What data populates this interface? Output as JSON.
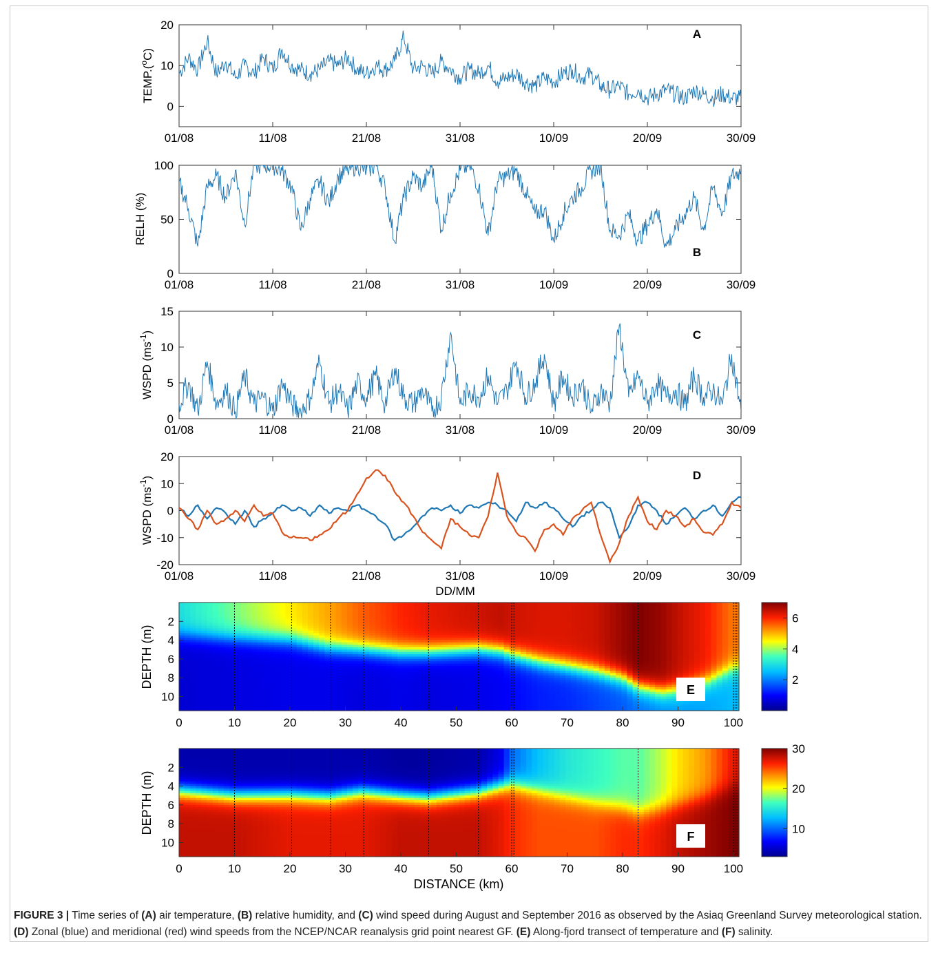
{
  "caption": {
    "label": "FIGURE 3 |",
    "s1": "Time series of",
    "a": "(A)",
    "s2": "air temperature,",
    "b": "(B)",
    "s3": "relative humidity, and",
    "c": "(C)",
    "s4": "wind speed during August and September 2016 as observed by the Asiaq Greenland Survey meteorological station.",
    "d": "(D)",
    "s5": "Zonal (blue) and meridional (red) wind speeds from the NCEP/NCAR reanalysis grid point nearest GF.",
    "e": "(E)",
    "s6": "Along-fjord transect of temperature and",
    "f": "(F)",
    "s7": "salinity."
  },
  "colors": {
    "series_blue": "#1f77b4",
    "series_red": "#d9531e",
    "axis": "#333333"
  },
  "chart_data": [
    {
      "panel": "A",
      "type": "line",
      "ylabel": "TEMP.(oC)",
      "ylabel_main": "TEMP.(",
      "ylabel_sup": "o",
      "ylabel_end": "C)",
      "xticks": [
        "01/08",
        "11/08",
        "21/08",
        "31/08",
        "10/09",
        "20/09",
        "30/09"
      ],
      "yticks": [
        "0",
        "10",
        "20"
      ],
      "ylim": [
        -5,
        20
      ],
      "xlim": [
        1,
        61
      ],
      "series": [
        {
          "color": "#1f77b4",
          "x": [
            1,
            2,
            3,
            4,
            5,
            6,
            7,
            8,
            9,
            10,
            11,
            12,
            13,
            14,
            15,
            16,
            17,
            18,
            19,
            20,
            21,
            22,
            23,
            24,
            25,
            26,
            27,
            28,
            29,
            30,
            31,
            32,
            33,
            34,
            35,
            36,
            37,
            38,
            39,
            40,
            41,
            42,
            43,
            44,
            45,
            46,
            47,
            48,
            49,
            50,
            51,
            52,
            53,
            54,
            55,
            56,
            57,
            58,
            59,
            60,
            61
          ],
          "y": [
            8,
            12,
            9,
            16,
            8,
            11,
            7,
            10,
            8,
            12,
            9,
            14,
            10,
            9,
            8,
            9,
            11,
            10,
            12,
            9,
            8,
            10,
            9,
            11,
            17,
            9,
            10,
            8,
            11,
            9,
            7,
            9,
            8,
            10,
            6,
            7,
            8,
            6,
            5,
            7,
            6,
            8,
            9,
            7,
            8,
            5,
            4,
            5,
            3,
            4,
            2,
            3,
            4,
            3,
            2,
            4,
            3,
            2,
            3,
            2,
            2
          ]
        }
      ]
    },
    {
      "panel": "B",
      "type": "line",
      "ylabel": "RELH (%)",
      "xticks": [
        "01/08",
        "11/08",
        "21/08",
        "31/08",
        "10/09",
        "20/09",
        "30/09"
      ],
      "yticks": [
        "0",
        "50",
        "100"
      ],
      "ylim": [
        0,
        100
      ],
      "xlim": [
        1,
        61
      ],
      "series": [
        {
          "color": "#1f77b4",
          "x": [
            1,
            2,
            3,
            4,
            5,
            6,
            7,
            8,
            9,
            10,
            11,
            12,
            13,
            14,
            15,
            16,
            17,
            18,
            19,
            20,
            21,
            22,
            23,
            24,
            25,
            26,
            27,
            28,
            29,
            30,
            31,
            32,
            33,
            34,
            35,
            36,
            37,
            38,
            39,
            40,
            41,
            42,
            43,
            44,
            45,
            46,
            47,
            48,
            49,
            50,
            51,
            52,
            53,
            54,
            55,
            56,
            57,
            58,
            59,
            60,
            61
          ],
          "y": [
            85,
            60,
            25,
            80,
            90,
            70,
            95,
            45,
            100,
            100,
            100,
            95,
            80,
            40,
            70,
            85,
            65,
            90,
            95,
            100,
            95,
            100,
            80,
            30,
            70,
            90,
            80,
            100,
            40,
            75,
            95,
            100,
            80,
            35,
            85,
            90,
            95,
            75,
            55,
            60,
            30,
            55,
            70,
            80,
            95,
            100,
            40,
            35,
            55,
            30,
            45,
            60,
            25,
            40,
            55,
            70,
            40,
            80,
            55,
            90,
            95
          ]
        }
      ]
    },
    {
      "panel": "C",
      "type": "line",
      "ylabel": "WSPD (ms-1)",
      "ylabel_main": "WSPD (ms",
      "ylabel_sup": "-1",
      "ylabel_end": ")",
      "xticks": [
        "01/08",
        "11/08",
        "21/08",
        "31/08",
        "10/09",
        "20/09",
        "30/09"
      ],
      "yticks": [
        "0",
        "5",
        "10",
        "15"
      ],
      "ylim": [
        0,
        15
      ],
      "xlim": [
        1,
        61
      ],
      "series": [
        {
          "color": "#1f77b4",
          "x": [
            1,
            2,
            3,
            4,
            5,
            6,
            7,
            8,
            9,
            10,
            11,
            12,
            13,
            14,
            15,
            16,
            17,
            18,
            19,
            20,
            21,
            22,
            23,
            24,
            25,
            26,
            27,
            28,
            29,
            30,
            31,
            32,
            33,
            34,
            35,
            36,
            37,
            38,
            39,
            40,
            41,
            42,
            43,
            44,
            45,
            46,
            47,
            48,
            49,
            50,
            51,
            52,
            53,
            54,
            55,
            56,
            57,
            58,
            59,
            60,
            61
          ],
          "y": [
            2,
            5,
            1,
            8,
            2,
            4,
            1,
            6,
            2,
            3,
            1,
            5,
            2,
            1,
            3,
            8,
            2,
            4,
            1,
            5,
            3,
            6,
            2,
            7,
            3,
            2,
            4,
            1,
            3,
            12,
            2,
            4,
            3,
            6,
            2,
            4,
            8,
            3,
            5,
            9,
            2,
            6,
            3,
            5,
            1,
            4,
            2,
            13,
            3,
            6,
            2,
            5,
            3,
            4,
            2,
            6,
            3,
            4,
            2,
            9,
            1
          ]
        }
      ]
    },
    {
      "panel": "D",
      "type": "line",
      "ylabel": "WSPD (ms-1)",
      "ylabel_main": "WSPD (ms",
      "ylabel_sup": "-1",
      "ylabel_end": ")",
      "xlabel": "DD/MM",
      "xticks": [
        "01/08",
        "11/08",
        "21/08",
        "31/08",
        "10/09",
        "20/09",
        "30/09"
      ],
      "yticks": [
        "-20",
        "-10",
        "0",
        "10",
        "20"
      ],
      "ylim": [
        -20,
        20
      ],
      "xlim": [
        1,
        61
      ],
      "series": [
        {
          "color": "#1f77b4",
          "x": [
            1,
            2,
            3,
            4,
            5,
            6,
            7,
            8,
            9,
            10,
            11,
            12,
            13,
            14,
            15,
            16,
            17,
            18,
            19,
            20,
            21,
            22,
            23,
            24,
            25,
            26,
            27,
            28,
            29,
            30,
            31,
            32,
            33,
            34,
            35,
            36,
            37,
            38,
            39,
            40,
            41,
            42,
            43,
            44,
            45,
            46,
            47,
            48,
            49,
            50,
            51,
            52,
            53,
            54,
            55,
            56,
            57,
            58,
            59,
            60,
            61
          ],
          "y": [
            1,
            -2,
            2,
            -3,
            1,
            -1,
            -5,
            0,
            -6,
            -3,
            -1,
            2,
            0,
            1,
            -2,
            2,
            -1,
            1,
            0,
            2,
            0,
            -2,
            -5,
            -11,
            -9,
            -6,
            -2,
            1,
            0,
            2,
            -1,
            2,
            1,
            3,
            2,
            0,
            -4,
            3,
            1,
            3,
            1,
            -3,
            -6,
            -2,
            0,
            3,
            1,
            -10,
            -6,
            2,
            3,
            0,
            -5,
            -2,
            1,
            -3,
            0,
            2,
            -2,
            3,
            5
          ]
        },
        {
          "color": "#d9531e",
          "x": [
            1,
            2,
            3,
            4,
            5,
            6,
            7,
            8,
            9,
            10,
            11,
            12,
            13,
            14,
            15,
            16,
            17,
            18,
            19,
            20,
            21,
            22,
            23,
            24,
            25,
            26,
            27,
            28,
            29,
            30,
            31,
            32,
            33,
            34,
            35,
            36,
            37,
            38,
            39,
            40,
            41,
            42,
            43,
            44,
            45,
            46,
            47,
            48,
            49,
            50,
            51,
            52,
            53,
            54,
            55,
            56,
            57,
            58,
            59,
            60,
            61
          ],
          "y": [
            1,
            -3,
            -7,
            0,
            -5,
            -3,
            0,
            -4,
            2,
            -2,
            -1,
            -8,
            -10,
            -10,
            -11,
            -9,
            -7,
            -3,
            0,
            6,
            12,
            15,
            13,
            7,
            3,
            -2,
            -8,
            -11,
            -14,
            -3,
            -6,
            -9,
            -10,
            -2,
            14,
            -2,
            -8,
            -10,
            -15,
            -7,
            -5,
            -9,
            -3,
            0,
            3,
            -9,
            -19,
            -12,
            -2,
            5,
            -4,
            -7,
            0,
            -2,
            -6,
            -3,
            -8,
            -9,
            -5,
            3,
            1
          ]
        }
      ]
    },
    {
      "panel": "E",
      "type": "heatmap",
      "ylabel": "DEPTH (m)",
      "xticks": [
        "0",
        "10",
        "20",
        "30",
        "40",
        "50",
        "60",
        "70",
        "80",
        "90",
        "100"
      ],
      "yticks": [
        "2",
        "4",
        "6",
        "8",
        "10"
      ],
      "xlim": [
        0,
        101
      ],
      "ylim": [
        11.5,
        0
      ],
      "colorbar_ticks": [
        "2",
        "4",
        "6"
      ],
      "clim": [
        0,
        7
      ],
      "stations_km": [
        10,
        20.3,
        27.3,
        33.3,
        45,
        54,
        60,
        60.4,
        82.8,
        100,
        100.3,
        100.6
      ],
      "x_km": [
        0,
        10,
        20,
        27,
        33,
        40,
        45,
        54,
        58,
        60,
        65,
        70,
        75,
        80,
        83,
        87,
        90,
        95,
        100
      ],
      "isotherm_depth": [
        3.5,
        3.8,
        4.0,
        4.8,
        5.0,
        5.3,
        5.3,
        5.0,
        5.2,
        5.6,
        6.3,
        6.8,
        7.3,
        8.0,
        9.0,
        9.5,
        9.3,
        8.5,
        7.0
      ],
      "surface_value": [
        3,
        3.8,
        4.6,
        5.1,
        5.6,
        6.0,
        6.2,
        6.4,
        6.5,
        6.4,
        6.3,
        6.3,
        6.4,
        6.8,
        7.0,
        6.8,
        6.5,
        6.1,
        5.4
      ],
      "bottom_value": [
        0.6,
        0.7,
        0.8,
        0.8,
        0.7,
        0.8,
        0.7,
        0.8,
        0.9,
        1.0,
        1.2,
        1.3,
        1.5,
        1.7,
        1.9,
        2.1,
        2.2,
        2.3,
        2.5
      ]
    },
    {
      "panel": "F",
      "type": "heatmap",
      "ylabel": "DEPTH (m)",
      "xlabel": "DISTANCE (km)",
      "xticks": [
        "0",
        "10",
        "20",
        "30",
        "40",
        "50",
        "60",
        "70",
        "80",
        "90",
        "100"
      ],
      "yticks": [
        "2",
        "4",
        "6",
        "8",
        "10"
      ],
      "xlim": [
        0,
        101
      ],
      "ylim": [
        11.5,
        0
      ],
      "colorbar_ticks": [
        "10",
        "20",
        "30"
      ],
      "clim": [
        3,
        30
      ],
      "stations_km": [
        10,
        20.3,
        27.3,
        33.3,
        45,
        54,
        60,
        60.4,
        82.8,
        100,
        100.3,
        100.6
      ],
      "x_km": [
        0,
        10,
        20,
        27,
        33,
        40,
        45,
        54,
        58,
        60,
        65,
        70,
        75,
        80,
        83,
        87,
        90,
        95,
        100
      ],
      "isohaline_depth": [
        4.5,
        5.0,
        4.9,
        5.1,
        4.6,
        5.0,
        5.2,
        4.6,
        4.0,
        3.8,
        4.5,
        5.2,
        5.8,
        6.3,
        6.8,
        6.4,
        6.0,
        5.2,
        4.0
      ],
      "surface_value": [
        4,
        4,
        4,
        4,
        4,
        3.5,
        3.5,
        4,
        6,
        10,
        13,
        15,
        16,
        17,
        17,
        19,
        21,
        23,
        27
      ],
      "bottom_value": [
        28,
        28,
        27,
        27,
        27,
        28,
        28,
        28,
        27,
        26,
        25,
        25,
        25,
        26,
        26,
        27,
        28,
        29,
        30
      ]
    }
  ]
}
